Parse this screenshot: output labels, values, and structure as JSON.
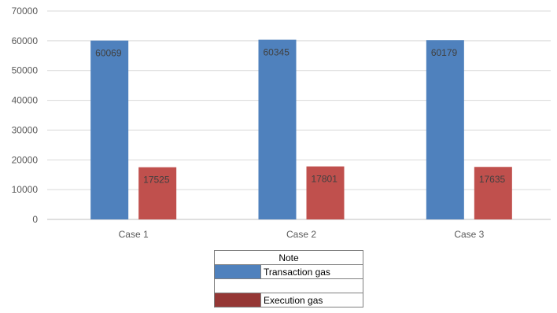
{
  "chart_data": {
    "type": "bar",
    "categories": [
      "Case 1",
      "Case 2",
      "Case 3"
    ],
    "series": [
      {
        "name": "Transaction gas",
        "values": [
          60069,
          60345,
          60179
        ],
        "color": "#4F81BD"
      },
      {
        "name": "Execution gas",
        "values": [
          17525,
          17801,
          17635
        ],
        "color": "#C0504D"
      }
    ],
    "ylim": [
      0,
      70000
    ],
    "yticks": [
      0,
      10000,
      20000,
      30000,
      40000,
      50000,
      60000,
      70000
    ],
    "grid": true,
    "legend": {
      "title": "Note",
      "placement": "bottom-center",
      "entries": [
        {
          "label": "Transaction gas",
          "color": "#4F81BD"
        },
        {
          "label": "Execution gas",
          "color": "#953735"
        }
      ]
    }
  }
}
